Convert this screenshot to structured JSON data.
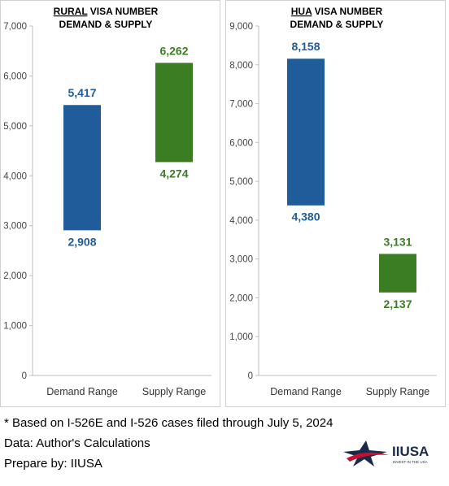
{
  "chart_data": [
    {
      "type": "bar",
      "subtype": "floating-range",
      "title_underlined": "RURAL",
      "title_rest": " VISA NUMBER",
      "title_line2": "DEMAND & SUPPLY",
      "categories": [
        "Demand Range",
        "Supply Range"
      ],
      "ranges": [
        {
          "category": "Demand Range",
          "low": 2908,
          "high": 5417,
          "low_label": "2,908",
          "high_label": "5,417",
          "color": "#1F5C99"
        },
        {
          "category": "Supply Range",
          "low": 4274,
          "high": 6262,
          "low_label": "4,274",
          "high_label": "6,262",
          "color": "#3A7D22"
        }
      ],
      "ylim": [
        0,
        7000
      ],
      "yticks": [
        0,
        1000,
        2000,
        3000,
        4000,
        5000,
        6000,
        7000
      ],
      "ytick_labels": [
        "0",
        "1,000",
        "2,000",
        "3,000",
        "4,000",
        "5,000",
        "6,000",
        "7,000"
      ],
      "grid": false
    },
    {
      "type": "bar",
      "subtype": "floating-range",
      "title_underlined": "HUA",
      "title_rest": " VISA NUMBER",
      "title_line2": "DEMAND & SUPPLY",
      "categories": [
        "Demand Range",
        "Supply Range"
      ],
      "ranges": [
        {
          "category": "Demand Range",
          "low": 4380,
          "high": 8158,
          "low_label": "4,380",
          "high_label": "8,158",
          "color": "#1F5C99"
        },
        {
          "category": "Supply Range",
          "low": 2137,
          "high": 3131,
          "low_label": "2,137",
          "high_label": "3,131",
          "color": "#3A7D22"
        }
      ],
      "ylim": [
        0,
        9000
      ],
      "yticks": [
        0,
        1000,
        2000,
        3000,
        4000,
        5000,
        6000,
        7000,
        8000,
        9000
      ],
      "ytick_labels": [
        "0",
        "1,000",
        "2,000",
        "3,000",
        "4,000",
        "5,000",
        "6,000",
        "7,000",
        "8,000",
        "9,000"
      ],
      "grid": false
    }
  ],
  "footer": {
    "note": "* Based on I-526E and I-526 cases filed through July 5, 2024",
    "data_source": "Data: Author's Calculations",
    "prepared_by": "Prepare by: IIUSA"
  },
  "logo": {
    "name": "IIUSA",
    "tagline": "INVEST IN THE USA",
    "colors": {
      "red": "#C8102E",
      "navy": "#1B2A4A"
    }
  }
}
